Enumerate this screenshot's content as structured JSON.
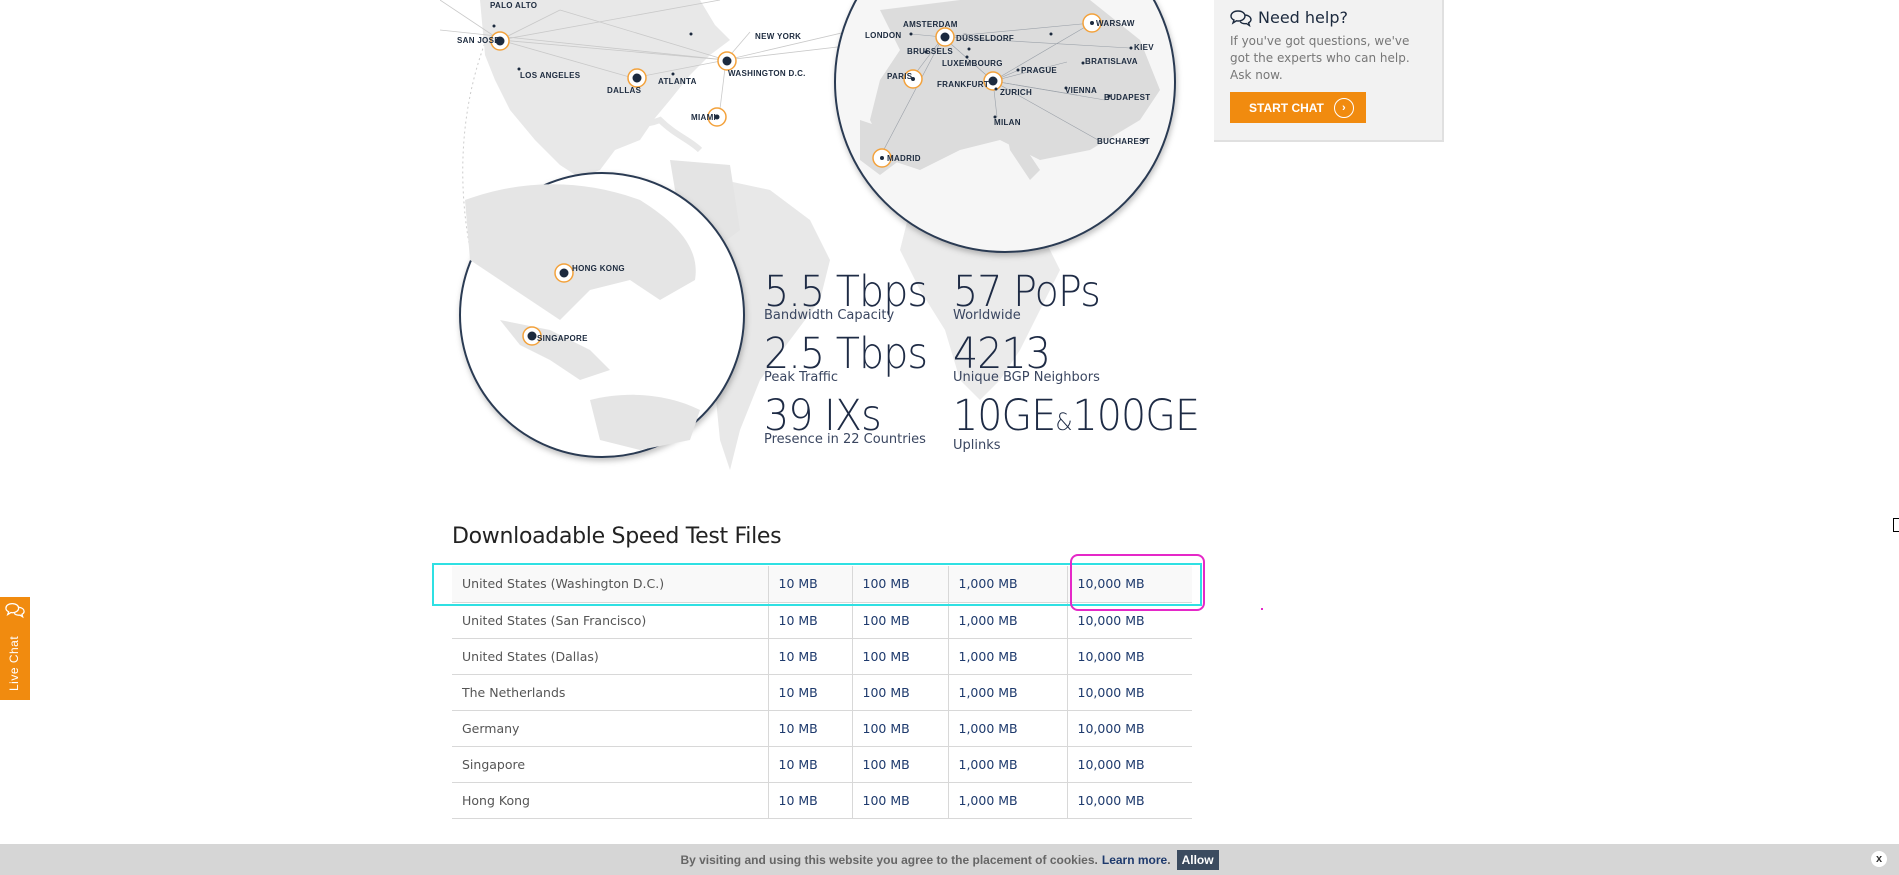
{
  "map": {
    "cities": {
      "palo_alto": "PALO ALTO",
      "san_jose": "SAN JOSE",
      "los_angeles": "LOS ANGELES",
      "dallas": "DALLAS",
      "atlanta": "ATLANTA",
      "new_york": "NEW YORK",
      "washington": "WASHINGTON D.C.",
      "miami": "MIAMI",
      "hong_kong": "HONG KONG",
      "singapore": "SINGAPORE",
      "amsterdam": "AMSTERDAM",
      "london": "LONDON",
      "brussels": "BRUSSELS",
      "dusseldorf": "DÜSSELDORF",
      "luxembourg": "LUXEMBOURG",
      "warsaw": "WARSAW",
      "kiev": "KIEV",
      "bratislava": "BRATISLAVA",
      "prague": "PRAGUE",
      "paris": "PARIS",
      "frankfurt": "FRANKFURT",
      "zurich": "ZURICH",
      "vienna": "VIENNA",
      "budapest": "BUDAPEST",
      "milan": "MILAN",
      "bucharest": "BUCHAREST",
      "madrid": "MADRID"
    }
  },
  "stats": [
    {
      "value": "5.5 Tbps",
      "label": "Bandwidth Capacity"
    },
    {
      "value": "57 PoPs",
      "label": "Worldwide"
    },
    {
      "value": "2.5 Tbps",
      "label": "Peak Traffic"
    },
    {
      "value": "4213",
      "label": "Unique  BGP Neighbors"
    },
    {
      "value": "39 IXs",
      "label": "Presence in 22 Countries"
    },
    {
      "value_a": "10GE",
      "value_amp": "&",
      "value_b": "100GE",
      "label": "Uplinks"
    }
  ],
  "help": {
    "title": "Need help?",
    "text": "If you've got questions, we've got the experts who can help. Ask now.",
    "button": "START CHAT",
    "button_icon": "arrow-circle-icon"
  },
  "speed_test": {
    "title": "Downloadable Speed Test Files",
    "rows": [
      {
        "location": "United States (Washington D.C.)",
        "s1": "10 MB",
        "s2": "100 MB",
        "s3": "1,000 MB",
        "s4": "10,000 MB"
      },
      {
        "location": "United States (San Francisco)",
        "s1": "10 MB",
        "s2": "100 MB",
        "s3": "1,000 MB",
        "s4": "10,000 MB"
      },
      {
        "location": "United States (Dallas)",
        "s1": "10 MB",
        "s2": "100 MB",
        "s3": "1,000 MB",
        "s4": "10,000 MB"
      },
      {
        "location": "The Netherlands",
        "s1": "10 MB",
        "s2": "100 MB",
        "s3": "1,000 MB",
        "s4": "10,000 MB"
      },
      {
        "location": "Germany",
        "s1": "10 MB",
        "s2": "100 MB",
        "s3": "1,000 MB",
        "s4": "10,000 MB"
      },
      {
        "location": "Singapore",
        "s1": "10 MB",
        "s2": "100 MB",
        "s3": "1,000 MB",
        "s4": "10,000 MB"
      },
      {
        "location": "Hong Kong",
        "s1": "10 MB",
        "s2": "100 MB",
        "s3": "1,000 MB",
        "s4": "10,000 MB"
      }
    ]
  },
  "live_chat": {
    "label": "Live Chat",
    "icon": "chat-bubbles-icon"
  },
  "cookie": {
    "text": "By visiting and using this website you agree to the placement of cookies.",
    "learn_more": "Learn more",
    "period": ".",
    "allow": "Allow",
    "close": "x"
  },
  "colors": {
    "accent": "#f18b0f",
    "navy": "#1c2a3e",
    "link": "#1e3a6d",
    "row_highlight": "#2fe0e3",
    "cell_highlight": "#e528c8"
  }
}
